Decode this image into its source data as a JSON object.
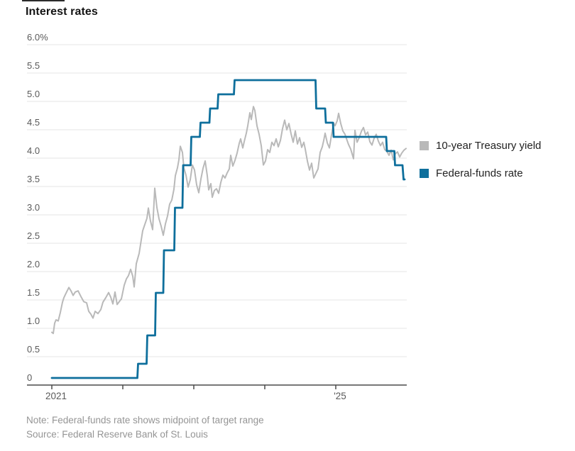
{
  "chart_data": {
    "type": "line",
    "title": "Interest rates",
    "note": "Note: Federal-funds rate shows midpoint of target range",
    "source": "Source: Federal Reserve Bank of St. Louis",
    "grid": true,
    "legend_position": "right",
    "colors": {
      "treasury": "#b9b9b9",
      "fed_funds": "#0e6f9c",
      "gridline": "#e4e4e4",
      "axis": "#4a4a4a",
      "tick_label": "#5a5a5a",
      "note_text": "#959595"
    },
    "y_axis": {
      "min": 0,
      "max": 6.0,
      "step": 0.5,
      "labels": [
        "6.0%",
        "5.5",
        "5.0",
        "4.5",
        "4.0",
        "3.5",
        "3.0",
        "2.5",
        "2.0",
        "1.5",
        "1.0",
        "0.5",
        "0"
      ]
    },
    "x_axis": {
      "min": 2021.0,
      "max": 2026.0,
      "ticks": [
        {
          "year": 2021,
          "label": "2021"
        },
        {
          "year": 2022,
          "label": ""
        },
        {
          "year": 2023,
          "label": ""
        },
        {
          "year": 2024,
          "label": ""
        },
        {
          "year": 2025,
          "label": "'25"
        }
      ]
    },
    "series": [
      {
        "name": "10-year Treasury yield",
        "color": "#b9b9b9",
        "width": 2,
        "points": [
          [
            2021.0,
            0.93
          ],
          [
            2021.02,
            0.91
          ],
          [
            2021.04,
            1.09
          ],
          [
            2021.06,
            1.15
          ],
          [
            2021.09,
            1.13
          ],
          [
            2021.12,
            1.28
          ],
          [
            2021.15,
            1.46
          ],
          [
            2021.17,
            1.54
          ],
          [
            2021.2,
            1.62
          ],
          [
            2021.24,
            1.72
          ],
          [
            2021.27,
            1.66
          ],
          [
            2021.3,
            1.58
          ],
          [
            2021.33,
            1.64
          ],
          [
            2021.37,
            1.66
          ],
          [
            2021.41,
            1.56
          ],
          [
            2021.45,
            1.47
          ],
          [
            2021.49,
            1.45
          ],
          [
            2021.52,
            1.3
          ],
          [
            2021.55,
            1.25
          ],
          [
            2021.58,
            1.18
          ],
          [
            2021.61,
            1.3
          ],
          [
            2021.65,
            1.26
          ],
          [
            2021.69,
            1.33
          ],
          [
            2021.72,
            1.46
          ],
          [
            2021.76,
            1.54
          ],
          [
            2021.8,
            1.63
          ],
          [
            2021.83,
            1.55
          ],
          [
            2021.86,
            1.43
          ],
          [
            2021.89,
            1.64
          ],
          [
            2021.92,
            1.42
          ],
          [
            2021.95,
            1.47
          ],
          [
            2021.98,
            1.52
          ],
          [
            2022.02,
            1.76
          ],
          [
            2022.05,
            1.87
          ],
          [
            2022.08,
            1.93
          ],
          [
            2022.11,
            2.04
          ],
          [
            2022.14,
            1.92
          ],
          [
            2022.16,
            1.73
          ],
          [
            2022.19,
            2.14
          ],
          [
            2022.23,
            2.32
          ],
          [
            2022.25,
            2.48
          ],
          [
            2022.28,
            2.72
          ],
          [
            2022.31,
            2.83
          ],
          [
            2022.34,
            2.94
          ],
          [
            2022.36,
            3.12
          ],
          [
            2022.39,
            2.89
          ],
          [
            2022.42,
            2.74
          ],
          [
            2022.45,
            3.47
          ],
          [
            2022.48,
            3.13
          ],
          [
            2022.51,
            2.93
          ],
          [
            2022.54,
            2.8
          ],
          [
            2022.57,
            2.64
          ],
          [
            2022.6,
            2.84
          ],
          [
            2022.63,
            2.98
          ],
          [
            2022.66,
            3.19
          ],
          [
            2022.69,
            3.26
          ],
          [
            2022.72,
            3.45
          ],
          [
            2022.74,
            3.69
          ],
          [
            2022.77,
            3.83
          ],
          [
            2022.79,
            3.97
          ],
          [
            2022.81,
            4.21
          ],
          [
            2022.84,
            4.1
          ],
          [
            2022.86,
            3.83
          ],
          [
            2022.89,
            3.7
          ],
          [
            2022.92,
            3.49
          ],
          [
            2022.95,
            3.62
          ],
          [
            2022.98,
            3.88
          ],
          [
            2023.01,
            3.79
          ],
          [
            2023.04,
            3.53
          ],
          [
            2023.07,
            3.39
          ],
          [
            2023.1,
            3.63
          ],
          [
            2023.13,
            3.82
          ],
          [
            2023.16,
            3.95
          ],
          [
            2023.19,
            3.69
          ],
          [
            2023.21,
            3.44
          ],
          [
            2023.24,
            3.55
          ],
          [
            2023.26,
            3.31
          ],
          [
            2023.29,
            3.43
          ],
          [
            2023.32,
            3.46
          ],
          [
            2023.35,
            3.38
          ],
          [
            2023.38,
            3.57
          ],
          [
            2023.41,
            3.7
          ],
          [
            2023.44,
            3.65
          ],
          [
            2023.47,
            3.74
          ],
          [
            2023.5,
            3.81
          ],
          [
            2023.52,
            4.05
          ],
          [
            2023.55,
            3.86
          ],
          [
            2023.58,
            3.96
          ],
          [
            2023.61,
            4.09
          ],
          [
            2023.64,
            4.26
          ],
          [
            2023.66,
            4.34
          ],
          [
            2023.69,
            4.18
          ],
          [
            2023.71,
            4.29
          ],
          [
            2023.74,
            4.44
          ],
          [
            2023.76,
            4.57
          ],
          [
            2023.79,
            4.8
          ],
          [
            2023.81,
            4.68
          ],
          [
            2023.84,
            4.91
          ],
          [
            2023.86,
            4.84
          ],
          [
            2023.89,
            4.57
          ],
          [
            2023.92,
            4.42
          ],
          [
            2023.95,
            4.22
          ],
          [
            2023.98,
            3.88
          ],
          [
            2024.01,
            3.95
          ],
          [
            2024.04,
            4.15
          ],
          [
            2024.07,
            4.1
          ],
          [
            2024.1,
            4.28
          ],
          [
            2024.13,
            4.22
          ],
          [
            2024.16,
            4.34
          ],
          [
            2024.19,
            4.2
          ],
          [
            2024.22,
            4.31
          ],
          [
            2024.25,
            4.52
          ],
          [
            2024.28,
            4.67
          ],
          [
            2024.31,
            4.5
          ],
          [
            2024.34,
            4.61
          ],
          [
            2024.37,
            4.43
          ],
          [
            2024.4,
            4.28
          ],
          [
            2024.43,
            4.48
          ],
          [
            2024.46,
            4.25
          ],
          [
            2024.49,
            4.36
          ],
          [
            2024.52,
            4.19
          ],
          [
            2024.55,
            4.28
          ],
          [
            2024.57,
            4.16
          ],
          [
            2024.6,
            3.95
          ],
          [
            2024.63,
            3.79
          ],
          [
            2024.66,
            3.91
          ],
          [
            2024.69,
            3.65
          ],
          [
            2024.72,
            3.73
          ],
          [
            2024.75,
            3.81
          ],
          [
            2024.78,
            4.1
          ],
          [
            2024.81,
            4.2
          ],
          [
            2024.83,
            4.31
          ],
          [
            2024.85,
            4.44
          ],
          [
            2024.88,
            4.27
          ],
          [
            2024.91,
            4.18
          ],
          [
            2024.94,
            4.41
          ],
          [
            2024.97,
            4.62
          ],
          [
            2024.99,
            4.57
          ],
          [
            2025.02,
            4.66
          ],
          [
            2025.04,
            4.79
          ],
          [
            2025.07,
            4.61
          ],
          [
            2025.1,
            4.48
          ],
          [
            2025.13,
            4.42
          ],
          [
            2025.16,
            4.31
          ],
          [
            2025.18,
            4.24
          ],
          [
            2025.21,
            4.16
          ],
          [
            2025.25,
            3.99
          ],
          [
            2025.27,
            4.49
          ],
          [
            2025.3,
            4.28
          ],
          [
            2025.33,
            4.36
          ],
          [
            2025.36,
            4.47
          ],
          [
            2025.39,
            4.54
          ],
          [
            2025.42,
            4.41
          ],
          [
            2025.45,
            4.46
          ],
          [
            2025.48,
            4.29
          ],
          [
            2025.51,
            4.23
          ],
          [
            2025.54,
            4.35
          ],
          [
            2025.57,
            4.42
          ],
          [
            2025.6,
            4.3
          ],
          [
            2025.63,
            4.22
          ],
          [
            2025.66,
            4.28
          ],
          [
            2025.69,
            4.15
          ],
          [
            2025.72,
            4.12
          ],
          [
            2025.75,
            4.05
          ],
          [
            2025.78,
            4.14
          ],
          [
            2025.81,
            3.97
          ],
          [
            2025.84,
            4.08
          ],
          [
            2025.87,
            4.11
          ],
          [
            2025.9,
            4.02
          ],
          [
            2025.93,
            4.09
          ],
          [
            2025.96,
            4.14
          ],
          [
            2025.99,
            4.17
          ]
        ]
      },
      {
        "name": "Federal-funds rate",
        "color": "#0e6f9c",
        "width": 2.8,
        "points": [
          [
            2021.0,
            0.125
          ],
          [
            2022.205,
            0.125
          ],
          [
            2022.215,
            0.375
          ],
          [
            2022.335,
            0.375
          ],
          [
            2022.345,
            0.875
          ],
          [
            2022.455,
            0.875
          ],
          [
            2022.465,
            1.625
          ],
          [
            2022.57,
            1.625
          ],
          [
            2022.58,
            2.375
          ],
          [
            2022.725,
            2.375
          ],
          [
            2022.735,
            3.125
          ],
          [
            2022.84,
            3.125
          ],
          [
            2022.85,
            3.875
          ],
          [
            2022.955,
            3.875
          ],
          [
            2022.965,
            4.375
          ],
          [
            2023.085,
            4.375
          ],
          [
            2023.095,
            4.625
          ],
          [
            2023.22,
            4.625
          ],
          [
            2023.23,
            4.875
          ],
          [
            2023.335,
            4.875
          ],
          [
            2023.345,
            5.125
          ],
          [
            2023.565,
            5.125
          ],
          [
            2023.575,
            5.375
          ],
          [
            2024.715,
            5.375
          ],
          [
            2024.725,
            4.875
          ],
          [
            2024.85,
            4.875
          ],
          [
            2024.86,
            4.625
          ],
          [
            2024.96,
            4.625
          ],
          [
            2024.97,
            4.375
          ],
          [
            2025.71,
            4.375
          ],
          [
            2025.72,
            4.125
          ],
          [
            2025.825,
            4.125
          ],
          [
            2025.835,
            3.875
          ],
          [
            2025.94,
            3.875
          ],
          [
            2025.955,
            3.625
          ],
          [
            2025.97,
            3.625
          ]
        ]
      }
    ]
  }
}
